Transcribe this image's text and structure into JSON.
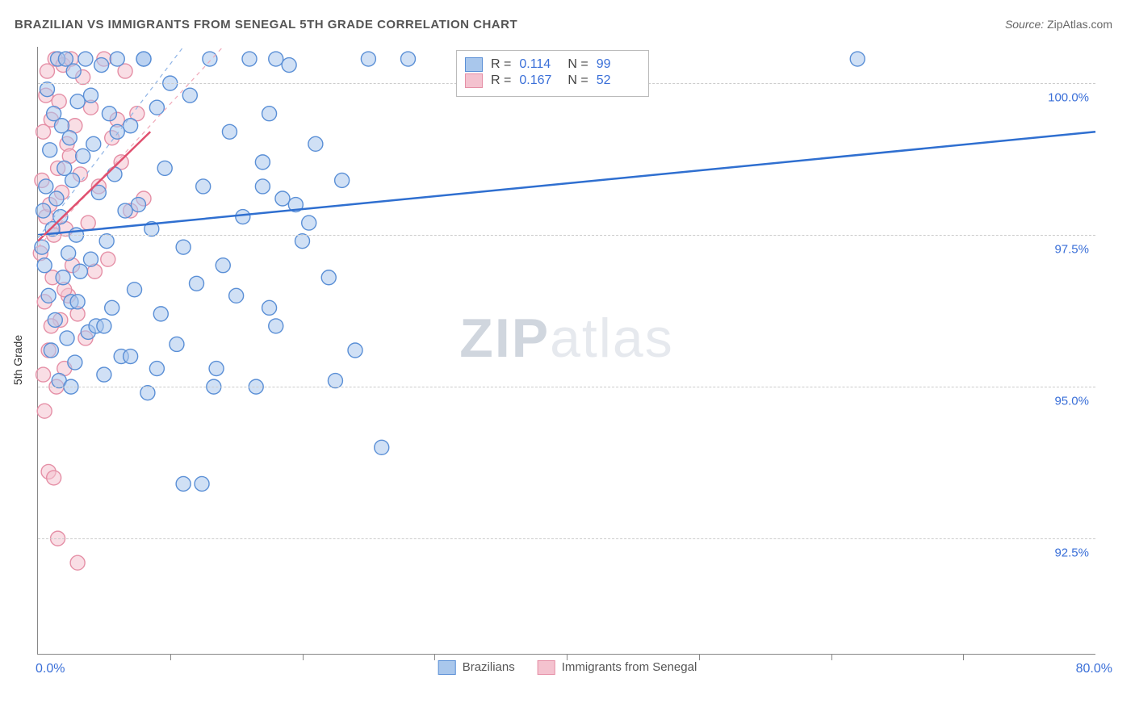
{
  "title": "BRAZILIAN VS IMMIGRANTS FROM SENEGAL 5TH GRADE CORRELATION CHART",
  "source_label": "Source:",
  "source_value": "ZipAtlas.com",
  "ylabel": "5th Grade",
  "watermark": {
    "a": "ZIP",
    "b": "atlas"
  },
  "chart": {
    "type": "scatter",
    "background_color": "#ffffff",
    "grid_color": "#cccccc",
    "axis_color": "#888888",
    "text_color": "#3a6fd8",
    "xlim": [
      0,
      80
    ],
    "ylim": [
      90.6,
      100.6
    ],
    "xticks_minor": [
      10,
      20,
      30,
      40,
      50,
      60,
      70
    ],
    "x_min_label": "0.0%",
    "x_max_label": "80.0%",
    "yticks": [
      {
        "v": 92.5,
        "label": "92.5%"
      },
      {
        "v": 95.0,
        "label": "95.0%"
      },
      {
        "v": 97.5,
        "label": "97.5%"
      },
      {
        "v": 100.0,
        "label": "100.0%"
      }
    ],
    "marker_radius": 9,
    "marker_opacity": 0.55,
    "series": [
      {
        "name": "Brazilians",
        "color_fill": "#a9c7ec",
        "color_stroke": "#5a8fd6",
        "R_label": "R =",
        "R": "0.114",
        "N_label": "N =",
        "N": "99",
        "trend": {
          "x1": 0,
          "y1": 97.5,
          "x2": 80,
          "y2": 99.2,
          "color": "#2f6fd0",
          "width": 2.5
        },
        "trend_ext": {
          "x1": 0,
          "y1": 97.45,
          "x2": 11,
          "y2": 100.6,
          "color": "#8fb4e6",
          "width": 1.2,
          "dash": "5,5"
        },
        "points": [
          [
            0.3,
            97.3
          ],
          [
            0.4,
            97.9
          ],
          [
            0.5,
            97.0
          ],
          [
            0.6,
            98.3
          ],
          [
            0.7,
            99.9
          ],
          [
            0.8,
            96.5
          ],
          [
            0.9,
            98.9
          ],
          [
            1.0,
            95.6
          ],
          [
            1.1,
            97.6
          ],
          [
            1.2,
            99.5
          ],
          [
            1.3,
            96.1
          ],
          [
            1.4,
            98.1
          ],
          [
            1.5,
            100.4
          ],
          [
            1.6,
            95.1
          ],
          [
            1.7,
            97.8
          ],
          [
            1.8,
            99.3
          ],
          [
            1.9,
            96.8
          ],
          [
            2.0,
            98.6
          ],
          [
            2.1,
            100.4
          ],
          [
            2.2,
            95.8
          ],
          [
            2.3,
            97.2
          ],
          [
            2.4,
            99.1
          ],
          [
            2.5,
            96.4
          ],
          [
            2.6,
            98.4
          ],
          [
            2.7,
            100.2
          ],
          [
            2.8,
            95.4
          ],
          [
            2.9,
            97.5
          ],
          [
            3.0,
            99.7
          ],
          [
            3.2,
            96.9
          ],
          [
            3.4,
            98.8
          ],
          [
            3.6,
            100.4
          ],
          [
            3.8,
            95.9
          ],
          [
            4.0,
            97.1
          ],
          [
            4.2,
            99.0
          ],
          [
            4.4,
            96.0
          ],
          [
            4.6,
            98.2
          ],
          [
            4.8,
            100.3
          ],
          [
            5.0,
            95.2
          ],
          [
            5.2,
            97.4
          ],
          [
            5.4,
            99.5
          ],
          [
            5.6,
            96.3
          ],
          [
            5.8,
            98.5
          ],
          [
            6.0,
            100.4
          ],
          [
            6.3,
            95.5
          ],
          [
            6.6,
            97.9
          ],
          [
            7.0,
            99.3
          ],
          [
            7.3,
            96.6
          ],
          [
            7.6,
            98.0
          ],
          [
            8.0,
            100.4
          ],
          [
            8.3,
            94.9
          ],
          [
            8.6,
            97.6
          ],
          [
            9.0,
            99.6
          ],
          [
            9.3,
            96.2
          ],
          [
            9.6,
            98.6
          ],
          [
            10.0,
            100.0
          ],
          [
            10.5,
            95.7
          ],
          [
            11.0,
            97.3
          ],
          [
            11.5,
            99.8
          ],
          [
            12.0,
            96.7
          ],
          [
            12.5,
            98.3
          ],
          [
            13.0,
            100.4
          ],
          [
            13.5,
            95.3
          ],
          [
            14.0,
            97.0
          ],
          [
            14.5,
            99.2
          ],
          [
            15.0,
            96.5
          ],
          [
            15.5,
            97.8
          ],
          [
            16.0,
            100.4
          ],
          [
            16.5,
            95.0
          ],
          [
            17.0,
            98.7
          ],
          [
            17.5,
            99.5
          ],
          [
            18.0,
            96.0
          ],
          [
            18.5,
            98.1
          ],
          [
            19.0,
            100.3
          ],
          [
            20.0,
            97.4
          ],
          [
            21.0,
            99.0
          ],
          [
            22.0,
            96.8
          ],
          [
            23.0,
            98.4
          ],
          [
            24.0,
            95.6
          ],
          [
            25.0,
            100.4
          ],
          [
            26.0,
            94.0
          ],
          [
            11.0,
            93.4
          ],
          [
            12.4,
            93.4
          ],
          [
            13.3,
            95.0
          ],
          [
            22.5,
            95.1
          ],
          [
            17.5,
            96.3
          ],
          [
            17.0,
            98.3
          ],
          [
            18.0,
            100.4
          ],
          [
            19.5,
            98.0
          ],
          [
            20.5,
            97.7
          ],
          [
            28.0,
            100.4
          ],
          [
            8.0,
            100.4
          ],
          [
            6.0,
            99.2
          ],
          [
            4.0,
            99.8
          ],
          [
            2.5,
            95.0
          ],
          [
            3.0,
            96.4
          ],
          [
            5.0,
            96.0
          ],
          [
            7.0,
            95.5
          ],
          [
            9.0,
            95.3
          ],
          [
            62.0,
            100.4
          ]
        ]
      },
      {
        "name": "Immigrants from Senegal",
        "color_fill": "#f4c2cf",
        "color_stroke": "#e58fa6",
        "R_label": "R =",
        "R": "0.167",
        "N_label": "N =",
        "N": "52",
        "trend": {
          "x1": 0,
          "y1": 97.4,
          "x2": 8.5,
          "y2": 99.2,
          "color": "#e0506f",
          "width": 2.5
        },
        "trend_ext": {
          "x1": 0,
          "y1": 97.3,
          "x2": 14,
          "y2": 100.6,
          "color": "#f0a8b8",
          "width": 1.2,
          "dash": "5,5"
        },
        "points": [
          [
            0.2,
            97.2
          ],
          [
            0.3,
            98.4
          ],
          [
            0.4,
            99.2
          ],
          [
            0.5,
            96.4
          ],
          [
            0.6,
            97.8
          ],
          [
            0.7,
            100.2
          ],
          [
            0.8,
            95.6
          ],
          [
            0.9,
            98.0
          ],
          [
            1.0,
            99.4
          ],
          [
            1.1,
            96.8
          ],
          [
            1.2,
            97.5
          ],
          [
            1.3,
            100.4
          ],
          [
            1.4,
            95.0
          ],
          [
            1.5,
            98.6
          ],
          [
            1.6,
            99.7
          ],
          [
            1.7,
            96.1
          ],
          [
            1.8,
            98.2
          ],
          [
            1.9,
            100.3
          ],
          [
            2.0,
            95.3
          ],
          [
            2.1,
            97.6
          ],
          [
            2.2,
            99.0
          ],
          [
            2.3,
            96.5
          ],
          [
            2.4,
            98.8
          ],
          [
            2.5,
            100.4
          ],
          [
            2.6,
            97.0
          ],
          [
            2.8,
            99.3
          ],
          [
            3.0,
            96.2
          ],
          [
            3.2,
            98.5
          ],
          [
            3.4,
            100.1
          ],
          [
            3.6,
            95.8
          ],
          [
            3.8,
            97.7
          ],
          [
            4.0,
            99.6
          ],
          [
            4.3,
            96.9
          ],
          [
            4.6,
            98.3
          ],
          [
            5.0,
            100.4
          ],
          [
            5.3,
            97.1
          ],
          [
            5.6,
            99.1
          ],
          [
            6.0,
            99.4
          ],
          [
            6.3,
            98.7
          ],
          [
            6.6,
            100.2
          ],
          [
            7.0,
            97.9
          ],
          [
            7.5,
            99.5
          ],
          [
            8.0,
            98.1
          ],
          [
            0.5,
            94.6
          ],
          [
            0.8,
            93.6
          ],
          [
            1.2,
            93.5
          ],
          [
            1.5,
            92.5
          ],
          [
            3.0,
            92.1
          ],
          [
            1.0,
            96.0
          ],
          [
            2.0,
            96.6
          ],
          [
            0.4,
            95.2
          ],
          [
            0.6,
            99.8
          ]
        ]
      }
    ]
  },
  "bottom_legend": [
    {
      "label": "Brazilians",
      "fill": "#a9c7ec",
      "stroke": "#5a8fd6"
    },
    {
      "label": "Immigrants from Senegal",
      "fill": "#f4c2cf",
      "stroke": "#e58fa6"
    }
  ]
}
